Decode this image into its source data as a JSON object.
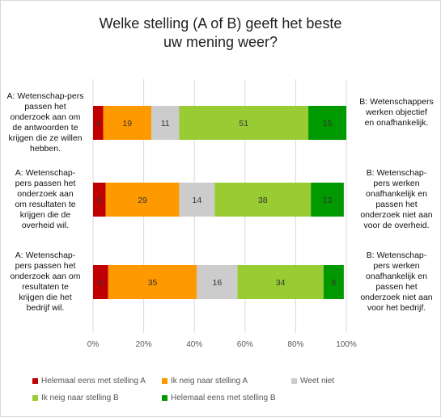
{
  "chart_data": {
    "type": "bar",
    "orientation": "horizontal",
    "stacked": true,
    "title_lines": [
      "Welke stelling (A of B) geeft het beste",
      "uw mening weer?"
    ],
    "categories": [
      {
        "left_lines": [
          "A: Wetenschap-pers",
          "passen het",
          "onderzoek aan om",
          "de antwoorden te",
          "krijgen die ze willen",
          "hebben."
        ],
        "right_lines": [
          "B: Wetenschappers",
          "werken objectief",
          "en onafhankelijk."
        ]
      },
      {
        "left_lines": [
          "A: Wetenschap-",
          "pers passen het",
          "onderzoek aan",
          "om resultaten te",
          "krijgen die de",
          "overheid wil."
        ],
        "right_lines": [
          "B: Wetenschap-",
          "pers werken",
          "onafhankelijk en",
          "passen het",
          "onderzoek niet aan",
          "voor de overheid."
        ]
      },
      {
        "left_lines": [
          "A: Wetenschap-",
          "pers passen het",
          "onderzoek aan om",
          "resultaten te",
          "krijgen die het",
          "bedrijf wil."
        ],
        "right_lines": [
          "B: Wetenschap-",
          "pers werken",
          "onafhankelijk en",
          "passen het",
          "onderzoek niet aan",
          "voor het bedrijf."
        ]
      }
    ],
    "series": [
      {
        "name": "Helemaal eens met stelling A",
        "color": "#c00000",
        "values": [
          4,
          5,
          6
        ]
      },
      {
        "name": "Ik neig naar stelling A",
        "color": "#ff9900",
        "values": [
          19,
          29,
          35
        ]
      },
      {
        "name": "Weet niet",
        "color": "#cccccc",
        "values": [
          11,
          14,
          16
        ]
      },
      {
        "name": "Ik neig naar stelling B",
        "color": "#99cc33",
        "values": [
          51,
          38,
          34
        ]
      },
      {
        "name": "Helemaal eens met stelling B",
        "color": "#009900",
        "values": [
          15,
          13,
          8
        ]
      }
    ],
    "xlim": [
      0,
      100
    ],
    "xticks": [
      "0%",
      "20%",
      "40%",
      "60%",
      "80%",
      "100%"
    ],
    "grid": true,
    "legend_position": "bottom"
  }
}
